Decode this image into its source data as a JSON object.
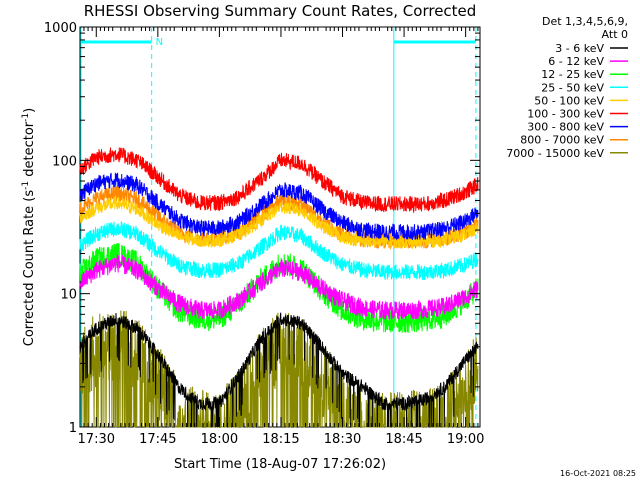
{
  "chart_data": {
    "type": "line",
    "title": "RHESSI Observing Summary Count Rates, Corrected",
    "xlabel": "Start Time (18-Aug-07 17:26:02)",
    "ylabel": "Corrected Count Rate (s",
    "ylabel_sup1": "-1",
    "ylabel_mid": " detector",
    "ylabel_sup2": "-1",
    "ylabel_end": ")",
    "x_scale": "time",
    "y_scale": "log",
    "xlim": [
      "17:26:02",
      "19:03:30"
    ],
    "ylim": [
      1,
      1000
    ],
    "x_ticks": [
      "17:30",
      "17:45",
      "18:00",
      "18:15",
      "18:30",
      "18:45",
      "19:00"
    ],
    "y_ticks": [
      "1",
      "10",
      "100",
      "1000"
    ],
    "legend_header": [
      "Det 1,3,4,5,6,9,",
      "Att 0"
    ],
    "legend_position": "right",
    "timestamp": "16-Oct-2021 08:25",
    "annotations": {
      "night_marker": "N"
    },
    "intervals": {
      "night": [
        "17:26:02",
        "17:43:30"
      ],
      "saa": [
        "18:42:30",
        "19:02:30"
      ]
    },
    "series": [
      {
        "name": "3 - 6 keV",
        "color": "#000000",
        "x": [
          "17:26",
          "17:30",
          "17:35",
          "17:40",
          "17:45",
          "17:50",
          "17:55",
          "18:00",
          "18:05",
          "18:10",
          "18:15",
          "18:20",
          "18:25",
          "18:30",
          "18:35",
          "18:40",
          "18:45",
          "18:50",
          "18:55",
          "19:00",
          "19:03"
        ],
        "y": [
          4,
          5.5,
          6.5,
          5.5,
          3.5,
          2,
          1.5,
          1.5,
          2.5,
          4.5,
          6.5,
          6,
          4,
          2.5,
          2,
          1.5,
          1.5,
          1.6,
          2,
          3.2,
          4
        ]
      },
      {
        "name": "6 - 12 keV",
        "color": "#ff00ff",
        "x": [
          "17:26",
          "17:30",
          "17:35",
          "17:40",
          "17:45",
          "17:50",
          "17:55",
          "18:00",
          "18:05",
          "18:10",
          "18:15",
          "18:20",
          "18:25",
          "18:30",
          "18:35",
          "18:40",
          "18:45",
          "18:50",
          "18:55",
          "19:00",
          "19:03"
        ],
        "y": [
          12,
          15,
          17,
          15,
          11,
          8.5,
          7.5,
          7.5,
          9,
          12,
          15.5,
          14.5,
          11,
          8.8,
          7.8,
          7.5,
          7.5,
          7.6,
          8,
          9.5,
          11
        ]
      },
      {
        "name": "12 - 25 keV",
        "color": "#00ff00",
        "x": [
          "17:26",
          "17:30",
          "17:35",
          "17:40",
          "17:45",
          "17:50",
          "17:55",
          "18:00",
          "18:05",
          "18:10",
          "18:15",
          "18:20",
          "18:25",
          "18:30",
          "18:35",
          "18:40",
          "18:45",
          "18:50",
          "18:55",
          "19:00",
          "19:03"
        ],
        "y": [
          14,
          18,
          20,
          17,
          11,
          7.5,
          6.5,
          6.5,
          8.5,
          12.5,
          17,
          15.5,
          10.5,
          7.5,
          6.5,
          6.2,
          6.2,
          6.3,
          6.8,
          9,
          11
        ]
      },
      {
        "name": "25 - 50 keV",
        "color": "#00ffff",
        "x": [
          "17:26",
          "17:30",
          "17:35",
          "17:40",
          "17:45",
          "17:50",
          "17:55",
          "18:00",
          "18:05",
          "18:10",
          "18:15",
          "18:20",
          "18:25",
          "18:30",
          "18:35",
          "18:40",
          "18:45",
          "18:50",
          "18:55",
          "19:00",
          "19:03"
        ],
        "y": [
          23,
          28,
          31,
          28,
          21,
          16.5,
          15,
          15,
          17,
          22,
          29,
          27,
          20.5,
          16.5,
          15,
          14.5,
          14.5,
          14.5,
          15,
          16.5,
          18.5
        ]
      },
      {
        "name": "50 - 100 keV",
        "color": "#ffcc00",
        "x": [
          "17:26",
          "17:30",
          "17:35",
          "17:40",
          "17:45",
          "17:50",
          "17:55",
          "18:00",
          "18:05",
          "18:10",
          "18:15",
          "18:20",
          "18:25",
          "18:30",
          "18:35",
          "18:40",
          "18:45",
          "18:50",
          "18:55",
          "19:00",
          "19:03"
        ],
        "y": [
          37,
          44,
          48,
          43,
          33,
          27,
          25,
          25,
          28,
          35,
          45,
          42,
          32,
          26.5,
          25,
          24.5,
          24.5,
          24.5,
          25.5,
          28,
          31
        ]
      },
      {
        "name": "100 - 300 keV",
        "color": "#ff0000",
        "x": [
          "17:26",
          "17:30",
          "17:35",
          "17:40",
          "17:45",
          "17:50",
          "17:55",
          "18:00",
          "18:05",
          "18:10",
          "18:15",
          "18:20",
          "18:25",
          "18:30",
          "18:35",
          "18:40",
          "18:45",
          "18:50",
          "18:55",
          "19:00",
          "19:03"
        ],
        "y": [
          85,
          105,
          112,
          100,
          75,
          55,
          48,
          48,
          54,
          72,
          100,
          95,
          70,
          54,
          48,
          47,
          47,
          47,
          50,
          58,
          66
        ]
      },
      {
        "name": "300 - 800 keV",
        "color": "#0000ff",
        "x": [
          "17:26",
          "17:30",
          "17:35",
          "17:40",
          "17:45",
          "17:50",
          "17:55",
          "18:00",
          "18:05",
          "18:10",
          "18:15",
          "18:20",
          "18:25",
          "18:30",
          "18:35",
          "18:40",
          "18:45",
          "18:50",
          "18:55",
          "19:00",
          "19:03"
        ],
        "y": [
          55,
          67,
          72,
          65,
          48,
          36,
          31,
          31,
          35,
          46,
          60,
          57,
          43,
          34,
          30,
          29,
          29,
          29,
          31,
          35,
          41
        ]
      },
      {
        "name": "800 - 7000 keV",
        "color": "#ff8800",
        "x": [
          "17:26",
          "17:30",
          "17:35",
          "17:40",
          "17:45",
          "17:50",
          "17:55",
          "18:00",
          "18:05",
          "18:10",
          "18:15",
          "18:20",
          "18:25",
          "18:30",
          "18:35",
          "18:40",
          "18:45",
          "18:50",
          "18:55",
          "19:00",
          "19:03"
        ],
        "y": [
          43,
          52,
          57,
          51,
          38,
          29,
          26,
          26,
          29,
          38,
          50,
          47,
          35,
          28,
          25.5,
          25,
          25,
          25,
          26,
          29,
          33
        ]
      },
      {
        "name": "7000 - 15000 keV",
        "color": "#888800",
        "x": [
          "17:26",
          "17:30",
          "17:35",
          "17:40",
          "17:45",
          "17:50",
          "17:55",
          "18:00",
          "18:05",
          "18:10",
          "18:15",
          "18:20",
          "18:25",
          "18:30",
          "18:35",
          "18:40",
          "18:45",
          "18:50",
          "18:55",
          "19:00",
          "19:03"
        ],
        "y": [
          2.8,
          3.8,
          4.2,
          3.6,
          2.2,
          1.3,
          1,
          1,
          1.5,
          2.8,
          4,
          3.6,
          2.3,
          1.4,
          1.1,
          1,
          1,
          1,
          1.2,
          2,
          2.8
        ]
      }
    ]
  }
}
